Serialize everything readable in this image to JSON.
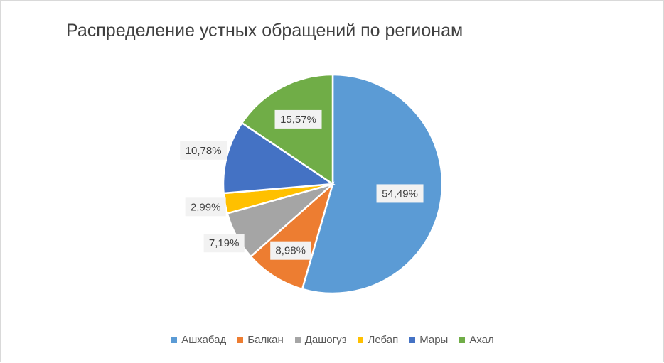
{
  "chart_data": {
    "type": "pie",
    "title": "Распределение устных обращений по регионам",
    "legend_position": "bottom",
    "categories": [
      "Ашхабад",
      "Балкан",
      "Дашогуз",
      "Лебап",
      "Мары",
      "Ахал"
    ],
    "values": [
      54.49,
      8.98,
      7.19,
      2.99,
      10.78,
      15.57
    ],
    "labels": [
      "54,49%",
      "8,98%",
      "7,19%",
      "2,99%",
      "10,78%",
      "15,57%"
    ],
    "colors": [
      "#5b9bd5",
      "#ed7d31",
      "#a5a5a5",
      "#ffc000",
      "#4472c4",
      "#70ad47"
    ]
  }
}
